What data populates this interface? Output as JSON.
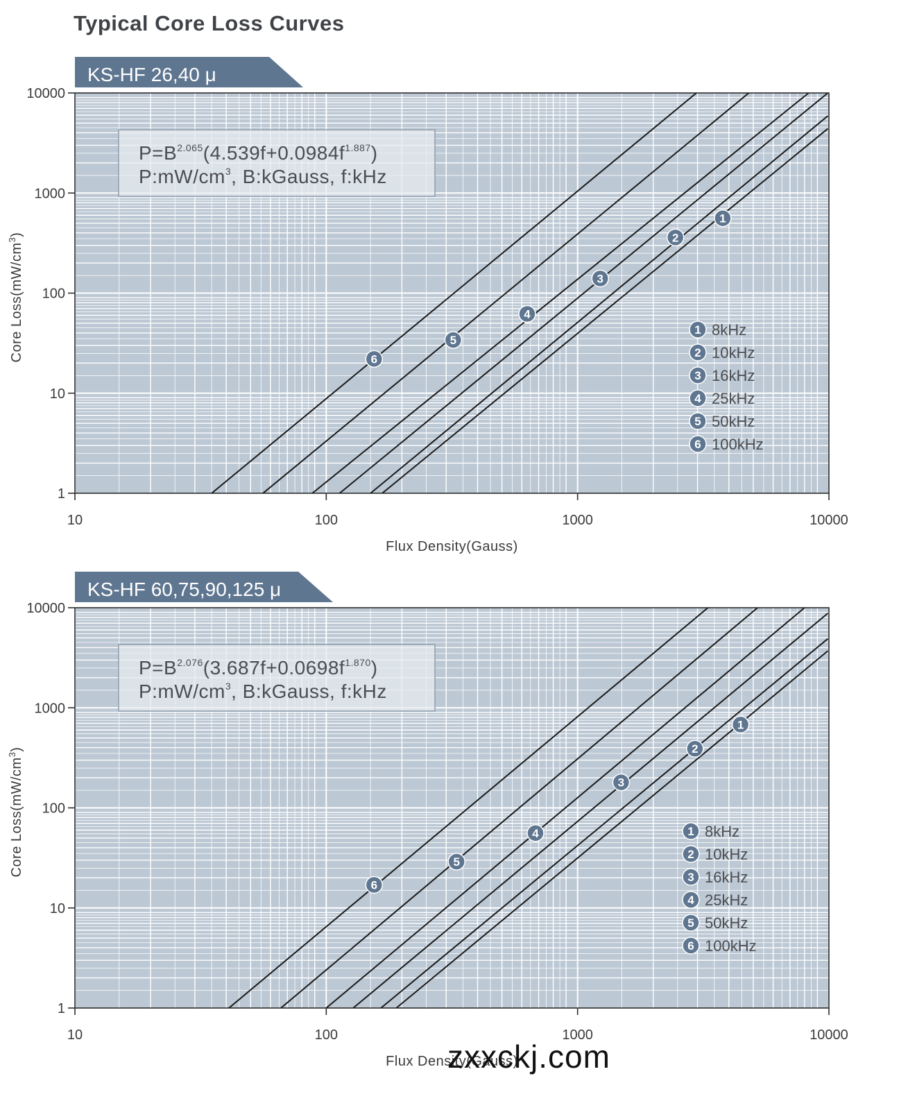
{
  "page": {
    "title": "Typical Core Loss Curves",
    "watermark": "zxxckj.com"
  },
  "colors": {
    "plot_bg": "#bcc8d4",
    "grid": "#ffffff",
    "banner": "#5f7690",
    "badge": "#5f7690",
    "curve": "#1a1a1a",
    "formula_box": "#e7ebf0"
  },
  "chart_data": [
    {
      "type": "line",
      "title": "KS-HF 26,40 μ",
      "formula": {
        "line1_prefix": "P=B",
        "exp1": "2.065",
        "line1_mid": "(4.539f+0.0984f",
        "exp2": "1.887",
        "line1_suffix": ")",
        "line2": "P:mW/cm",
        "line2_exp": "3",
        "line2_suffix": ",  B:kGauss,  f:kHz"
      },
      "xlabel": "Flux Density(Gauss)",
      "ylabel": "Core Loss(mW/cm",
      "ylabel_exp": "3",
      "ylabel_suffix": ")",
      "xscale": "log",
      "yscale": "log",
      "xlim": [
        10,
        10000
      ],
      "ylim": [
        1,
        10000
      ],
      "x_ticks": [
        "10",
        "100",
        "1000",
        "10000"
      ],
      "y_ticks": [
        "10000",
        "1000",
        "100",
        "10",
        "1"
      ],
      "legend_position": "right",
      "series": [
        {
          "id": "1",
          "name": "8kHz",
          "freq": 8,
          "x": [
            167,
            9900
          ],
          "y": [
            1,
            4400
          ],
          "marker": {
            "x": 3780,
            "y": 560
          }
        },
        {
          "id": "2",
          "name": "10kHz",
          "freq": 10,
          "x": [
            150,
            9900
          ],
          "y": [
            1,
            5900
          ],
          "marker": {
            "x": 2450,
            "y": 360
          }
        },
        {
          "id": "3",
          "name": "16kHz",
          "freq": 16,
          "x": [
            113,
            9900
          ],
          "y": [
            1,
            10000
          ],
          "marker": {
            "x": 1230,
            "y": 140
          }
        },
        {
          "id": "4",
          "name": "25kHz",
          "freq": 25,
          "x": [
            88,
            8300
          ],
          "y": [
            1,
            10000
          ],
          "marker": {
            "x": 630,
            "y": 62
          }
        },
        {
          "id": "5",
          "name": "50kHz",
          "freq": 50,
          "x": [
            56,
            4800
          ],
          "y": [
            1,
            10000
          ],
          "marker": {
            "x": 320,
            "y": 34
          }
        },
        {
          "id": "6",
          "name": "100kHz",
          "freq": 100,
          "x": [
            35,
            2970
          ],
          "y": [
            1,
            10000
          ],
          "marker": {
            "x": 155,
            "y": 22
          }
        }
      ]
    },
    {
      "type": "line",
      "title": "KS-HF 60,75,90,125 μ",
      "formula": {
        "line1_prefix": "P=B",
        "exp1": "2.076",
        "line1_mid": "(3.687f+0.0698f",
        "exp2": "1.870",
        "line1_suffix": ")",
        "line2": "P:mW/cm",
        "line2_exp": "3",
        "line2_suffix": ",  B:kGauss,  f:kHz"
      },
      "xlabel": "Flux Density(Gauss)",
      "ylabel": "Core Loss(mW/cm",
      "ylabel_exp": "3",
      "ylabel_suffix": ")",
      "xscale": "log",
      "yscale": "log",
      "xlim": [
        10,
        10000
      ],
      "ylim": [
        1,
        10000
      ],
      "x_ticks": [
        "10",
        "100",
        "1000",
        "10000"
      ],
      "y_ticks": [
        "10000",
        "1000",
        "100",
        "10",
        "1"
      ],
      "legend_position": "right",
      "series": [
        {
          "id": "1",
          "name": "8kHz",
          "freq": 8,
          "x": [
            190,
            9900
          ],
          "y": [
            1,
            3700
          ],
          "marker": {
            "x": 4450,
            "y": 680
          }
        },
        {
          "id": "2",
          "name": "10kHz",
          "freq": 10,
          "x": [
            165,
            9900
          ],
          "y": [
            1,
            4900
          ],
          "marker": {
            "x": 2930,
            "y": 390
          }
        },
        {
          "id": "3",
          "name": "16kHz",
          "freq": 16,
          "x": [
            128,
            9900
          ],
          "y": [
            1,
            8800
          ],
          "marker": {
            "x": 1490,
            "y": 180
          }
        },
        {
          "id": "4",
          "name": "25kHz",
          "freq": 25,
          "x": [
            100,
            8000
          ],
          "y": [
            1,
            10000
          ],
          "marker": {
            "x": 680,
            "y": 56
          }
        },
        {
          "id": "5",
          "name": "50kHz",
          "freq": 50,
          "x": [
            66,
            5200
          ],
          "y": [
            1,
            10000
          ],
          "marker": {
            "x": 330,
            "y": 29
          }
        },
        {
          "id": "6",
          "name": "100kHz",
          "freq": 100,
          "x": [
            41,
            3300
          ],
          "y": [
            1,
            10000
          ],
          "marker": {
            "x": 155,
            "y": 17
          }
        }
      ]
    }
  ]
}
